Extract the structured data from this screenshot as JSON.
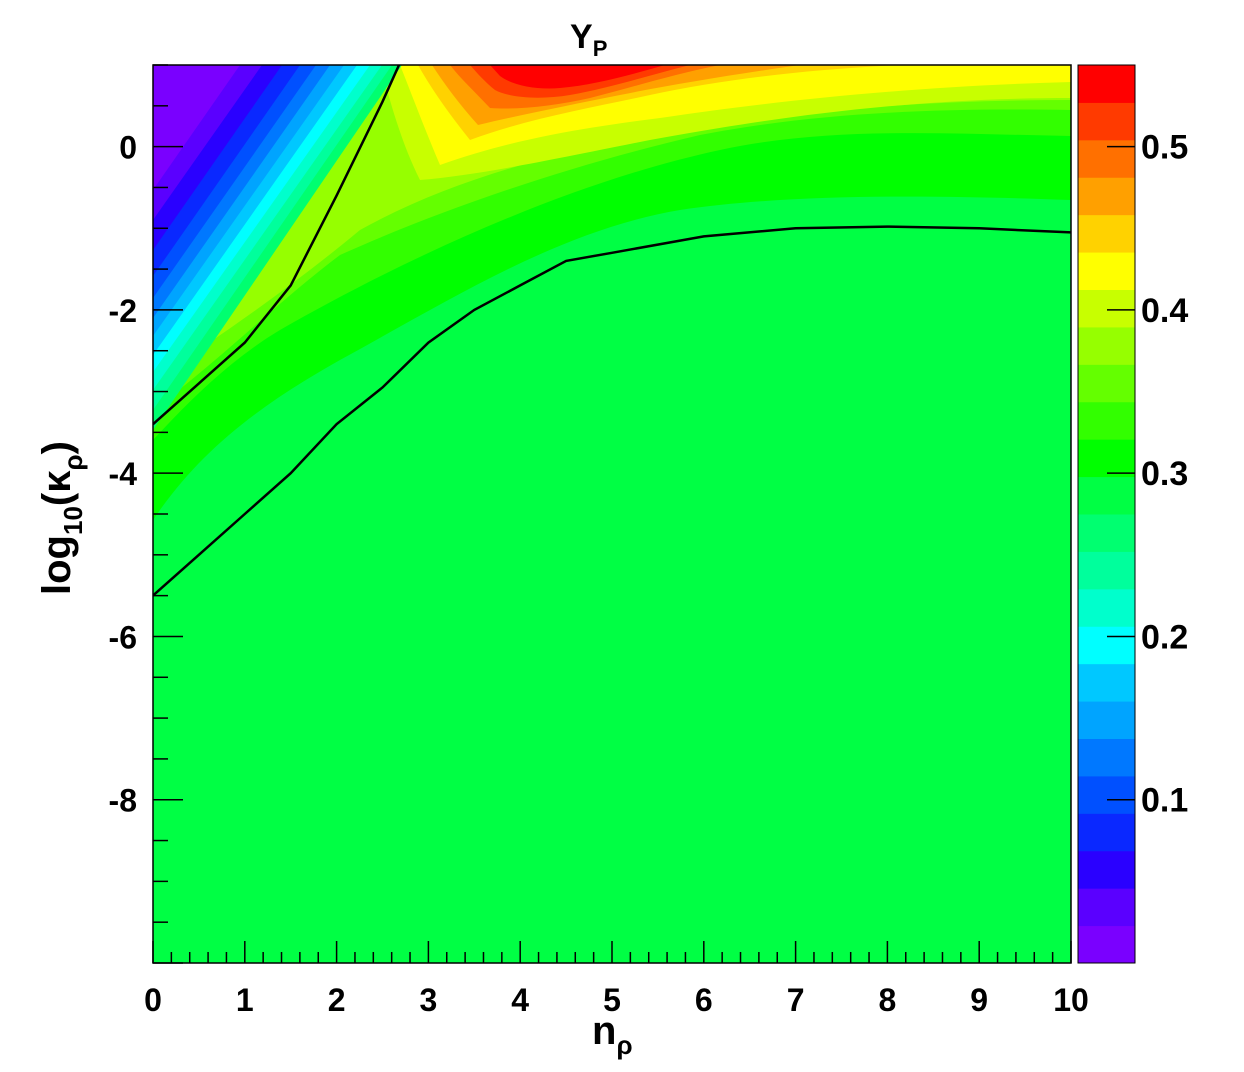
{
  "chart_data": {
    "type": "heatmap",
    "title": {
      "main": "Y",
      "sub": "P"
    },
    "xlabel": {
      "main": "n",
      "sub": "ρ"
    },
    "ylabel": {
      "prefix": "log",
      "sub1": "10",
      "open": "(κ",
      "sub2": "ρ",
      "close": ")"
    },
    "xlim": [
      0,
      10
    ],
    "ylim": [
      -10,
      1
    ],
    "x_ticks": [
      0,
      1,
      2,
      3,
      4,
      5,
      6,
      7,
      8,
      9,
      10
    ],
    "x_tick_labels": [
      "0",
      "1",
      "2",
      "3",
      "4",
      "5",
      "6",
      "7",
      "8",
      "9",
      "10"
    ],
    "y_ticks": [
      0,
      -2,
      -4,
      -6,
      -8
    ],
    "y_tick_labels": [
      "0",
      "-2",
      "-4",
      "-6",
      "-8"
    ],
    "colorbar": {
      "range": [
        0,
        0.55
      ],
      "ticks": [
        0.1,
        0.2,
        0.3,
        0.4,
        0.5
      ],
      "tick_labels": [
        "0.1",
        "0.2",
        "0.3",
        "0.4",
        "0.5"
      ],
      "colors": [
        "#7a00ff",
        "#5a00ff",
        "#2a00ff",
        "#0a28ff",
        "#0050ff",
        "#0078ff",
        "#00a4ff",
        "#00c8ff",
        "#00ffff",
        "#00ffcc",
        "#00ff9c",
        "#00ff70",
        "#00ff44",
        "#00ff00",
        "#32ff00",
        "#64ff00",
        "#96ff00",
        "#c8ff00",
        "#ffff00",
        "#ffd200",
        "#ffa000",
        "#ff7000",
        "#ff3a00",
        "#ff0000"
      ]
    },
    "contours": [
      {
        "name": "",
        "x": [
          0,
          0.5,
          1.0,
          1.5,
          2.0,
          2.5,
          2.68
        ],
        "y": [
          -3.4,
          -2.9,
          -2.4,
          -1.7,
          -0.6,
          0.55,
          1.0
        ]
      },
      {
        "name": "",
        "x": [
          0,
          0.5,
          1.0,
          1.5,
          2.0,
          2.5,
          3.0,
          3.5,
          4.0,
          4.5,
          5.0,
          6.0,
          7.0,
          8.0,
          9.0,
          10.0
        ],
        "y": [
          -5.5,
          -5.0,
          -4.5,
          -4.0,
          -3.4,
          -2.95,
          -2.4,
          -2.0,
          -1.7,
          -1.4,
          -1.3,
          -1.1,
          -1.0,
          -0.98,
          -1.0,
          -1.05
        ]
      }
    ],
    "grid": false,
    "legend": "colorbar-right"
  }
}
